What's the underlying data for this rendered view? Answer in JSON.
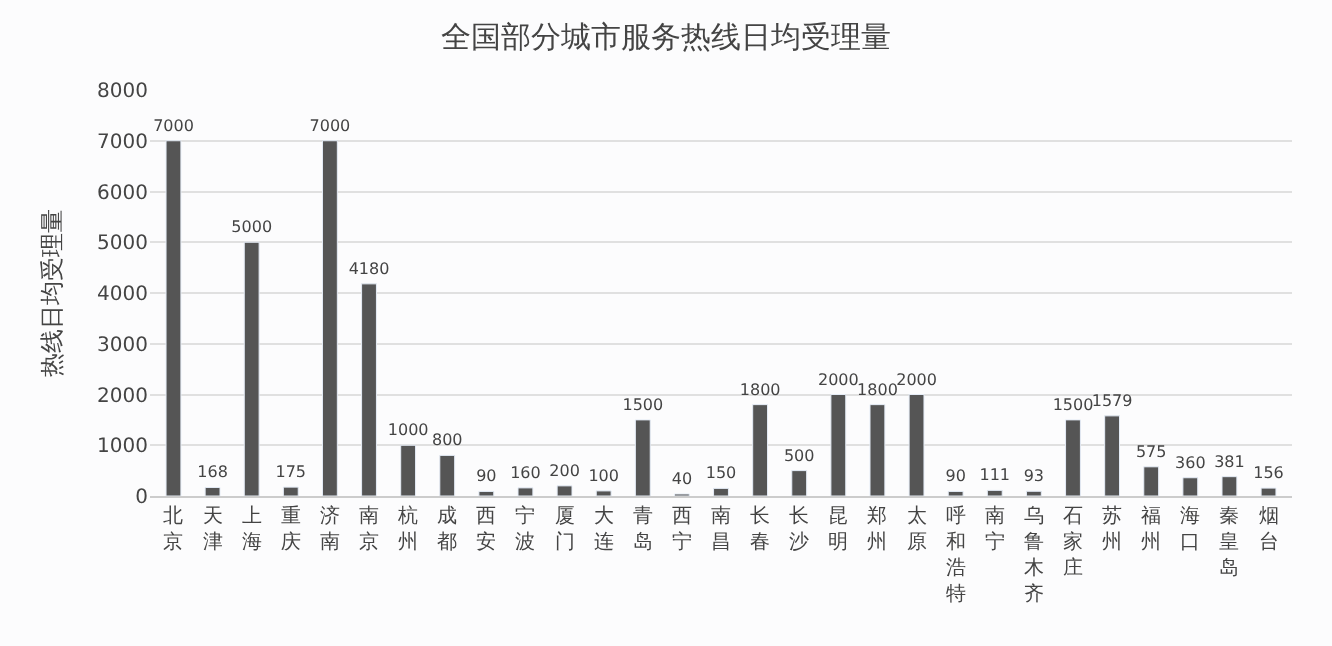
{
  "chart_data": {
    "type": "bar",
    "title": "全国部分城市服务热线日均受理量",
    "ylabel": "热线日均受理量",
    "categories": [
      "北京",
      "天津",
      "上海",
      "重庆",
      "济南",
      "南京",
      "杭州",
      "成都",
      "西安",
      "宁波",
      "厦门",
      "大连",
      "青岛",
      "西宁",
      "南昌",
      "长春",
      "长沙",
      "昆明",
      "郑州",
      "太原",
      "呼和浩特",
      "南宁",
      "乌鲁木齐",
      "石家庄",
      "苏州",
      "福州",
      "海口",
      "秦皇岛",
      "烟台"
    ],
    "values": [
      7000,
      168,
      5000,
      175,
      7000,
      4180,
      1000,
      800,
      90,
      160,
      200,
      100,
      1500,
      40,
      150,
      1800,
      500,
      2000,
      1800,
      2000,
      90,
      111,
      93,
      1500,
      1579,
      575,
      360,
      381,
      156
    ],
    "color": "#555555",
    "ylim": [
      0,
      8000
    ],
    "yticks": [
      0,
      1000,
      2000,
      3000,
      4000,
      5000,
      6000,
      7000,
      8000
    ],
    "grid": "y",
    "data_labels": true,
    "legend": false
  }
}
